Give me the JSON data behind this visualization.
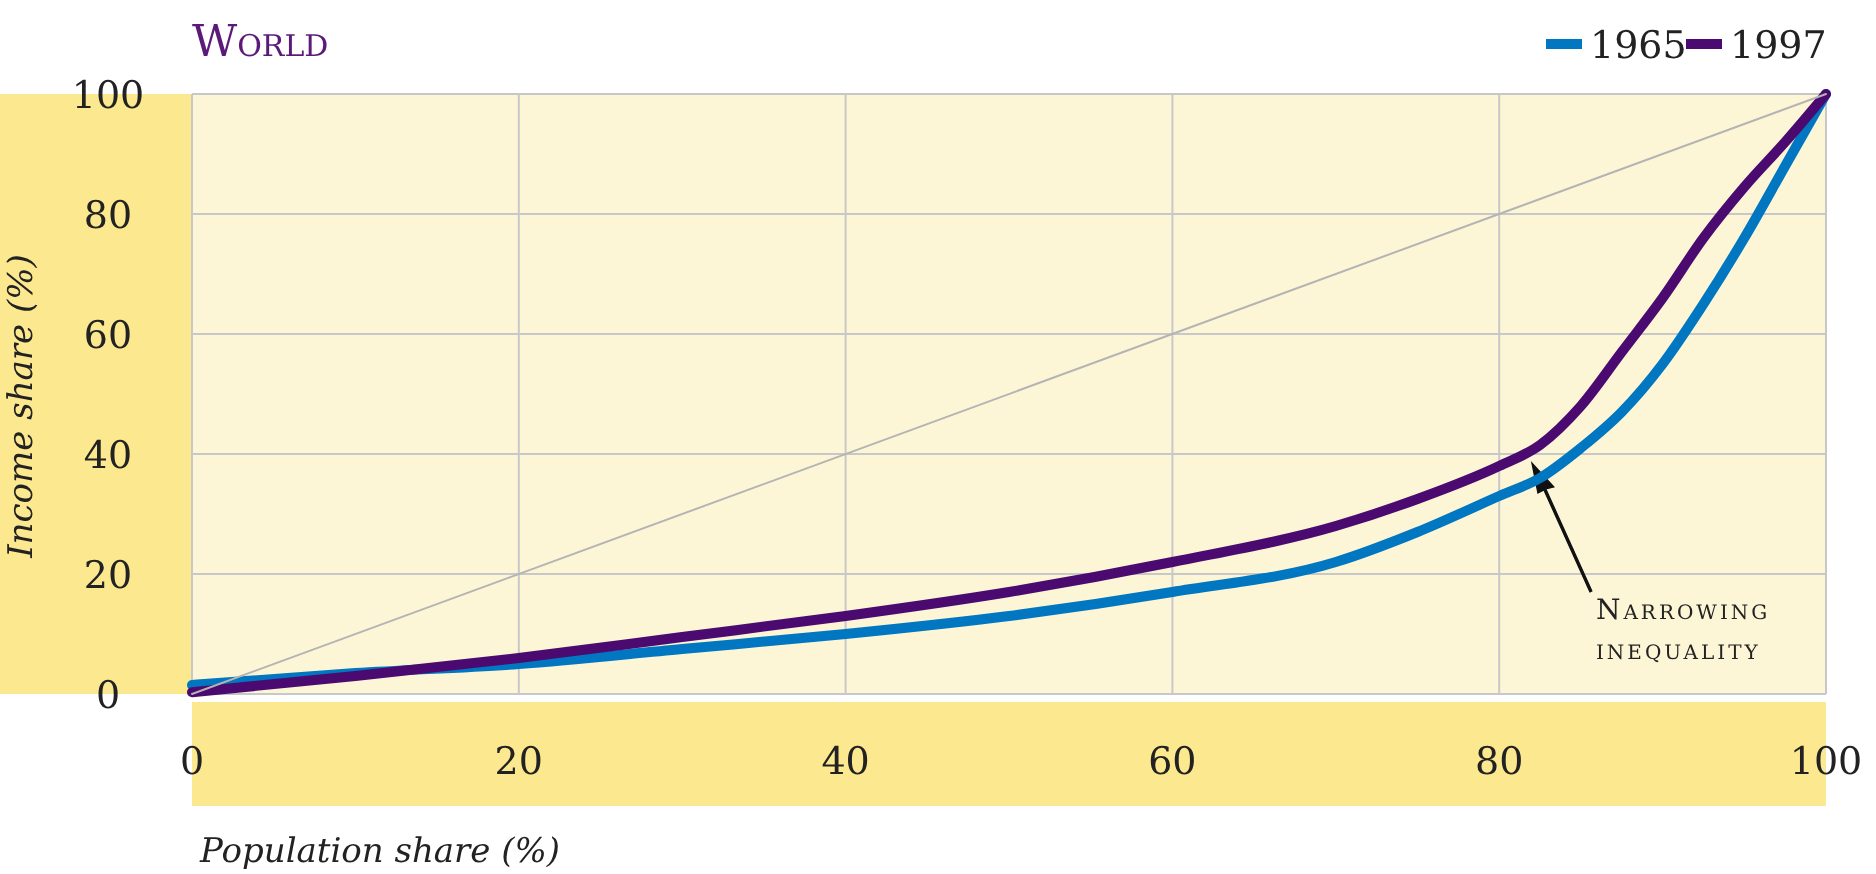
{
  "chart_data": {
    "type": "line",
    "title": "World",
    "xlabel": "Population share (%)",
    "ylabel": "Income share (%)",
    "x": [
      0,
      10,
      20,
      30,
      40,
      50,
      60,
      70,
      75,
      80,
      82.5,
      85,
      87.5,
      90,
      92.5,
      95,
      97.5,
      100
    ],
    "series": [
      {
        "name": "1965",
        "color": "#0077c0",
        "values": [
          1.5,
          3.5,
          5,
          7.5,
          10,
          13,
          17,
          22,
          27,
          33,
          36,
          41,
          47,
          55,
          65,
          76,
          88,
          100
        ]
      },
      {
        "name": "1997",
        "color": "#4b0a70",
        "values": [
          0.3,
          3,
          6,
          9.5,
          13,
          17,
          22,
          28,
          32.5,
          38,
          41.5,
          48,
          57,
          66,
          76,
          84.5,
          92,
          100
        ]
      },
      {
        "type": "line",
        "color": "#b4b4b4",
        "x": [
          0,
          100
        ],
        "values": [
          0,
          100
        ]
      }
    ],
    "xlim": [
      0,
      100
    ],
    "ylim": [
      0,
      100
    ],
    "xticks": [
      0,
      20,
      40,
      60,
      80,
      100
    ],
    "yticks": [
      0,
      20,
      40,
      60,
      80,
      100
    ],
    "grid": true,
    "legend": "top right",
    "annotations": [
      "Narrowing inequality"
    ]
  }
}
